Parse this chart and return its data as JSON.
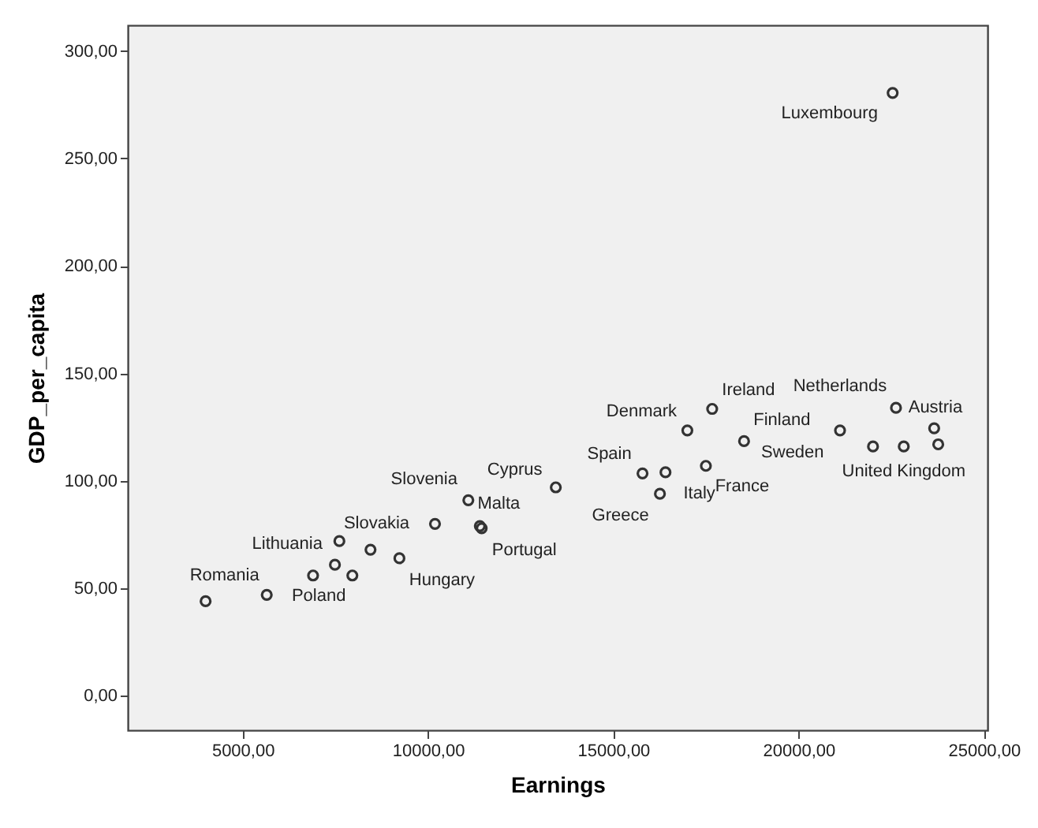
{
  "chart_data": {
    "type": "scatter",
    "xlabel": "Earnings",
    "ylabel": "GDP_per_capita",
    "x": [
      4000,
      5650,
      6900,
      7490,
      7610,
      7960,
      8450,
      9230,
      10190,
      11090,
      11400,
      11450,
      13450,
      15790,
      16410,
      16260,
      17500,
      17000,
      17670,
      18530,
      21120,
      22010,
      22840,
      22630,
      23660,
      23770,
      22540
    ],
    "series": [
      {
        "color": "#333333",
        "values": [
          44,
          47,
          56,
          61,
          72,
          56,
          68,
          64,
          80,
          91,
          79,
          78,
          97,
          103.5,
          104,
          94,
          107,
          123.5,
          133.5,
          118.5,
          123.5,
          116,
          116,
          134,
          124.5,
          117,
          280.5
        ]
      }
    ],
    "xlim": [
      1900,
      25100
    ],
    "ylim": [
      -16,
      312
    ],
    "xticks": [
      {
        "value": 5000,
        "label": "5000,00"
      },
      {
        "value": 10000,
        "label": "10000,00"
      },
      {
        "value": 15000,
        "label": "15000,00"
      },
      {
        "value": 20000,
        "label": "20000,00"
      },
      {
        "value": 25000,
        "label": "25000,00"
      }
    ],
    "yticks": [
      {
        "value": 0,
        "label": "0,00"
      },
      {
        "value": 50,
        "label": "50,00"
      },
      {
        "value": 100,
        "label": "100,00"
      },
      {
        "value": 150,
        "label": "150,00"
      },
      {
        "value": 200,
        "label": "200,00"
      },
      {
        "value": 250,
        "label": "250,00"
      },
      {
        "value": 300,
        "label": "300,00"
      }
    ],
    "marker": "circle",
    "grid": false,
    "annotations": [
      {
        "text": "Romania",
        "x": 4000,
        "y": 44
      },
      {
        "text": "Poland",
        "x": 5650,
        "y": 47
      },
      {
        "text": "Lithuania",
        "x": 7610,
        "y": 72
      },
      {
        "text": "Hungary",
        "x": 9230,
        "y": 64
      },
      {
        "text": "Slovakia",
        "x": 10190,
        "y": 80
      },
      {
        "text": "Slovenia",
        "x": 11090,
        "y": 91
      },
      {
        "text": "Malta",
        "x": 11400,
        "y": 79
      },
      {
        "text": "Portugal",
        "x": 11450,
        "y": 78
      },
      {
        "text": "Cyprus",
        "x": 13450,
        "y": 97
      },
      {
        "text": "Spain",
        "x": 15790,
        "y": 103.5
      },
      {
        "text": "Greece",
        "x": 15790,
        "y": 103.5
      },
      {
        "text": "Italy",
        "x": 16260,
        "y": 94
      },
      {
        "text": "France",
        "x": 17500,
        "y": 107
      },
      {
        "text": "Denmark",
        "x": 17000,
        "y": 123.5
      },
      {
        "text": "Ireland",
        "x": 17670,
        "y": 133.5
      },
      {
        "text": "Finland",
        "x": 18530,
        "y": 118.5
      },
      {
        "text": "Netherlands",
        "x": 21120,
        "y": 123.5
      },
      {
        "text": "Austria",
        "x": 22630,
        "y": 134
      },
      {
        "text": "Sweden",
        "x": 22010,
        "y": 116
      },
      {
        "text": "United Kingdom",
        "x": 22840,
        "y": 116
      },
      {
        "text": "Luxembourg",
        "x": 22540,
        "y": 280.5
      }
    ]
  }
}
